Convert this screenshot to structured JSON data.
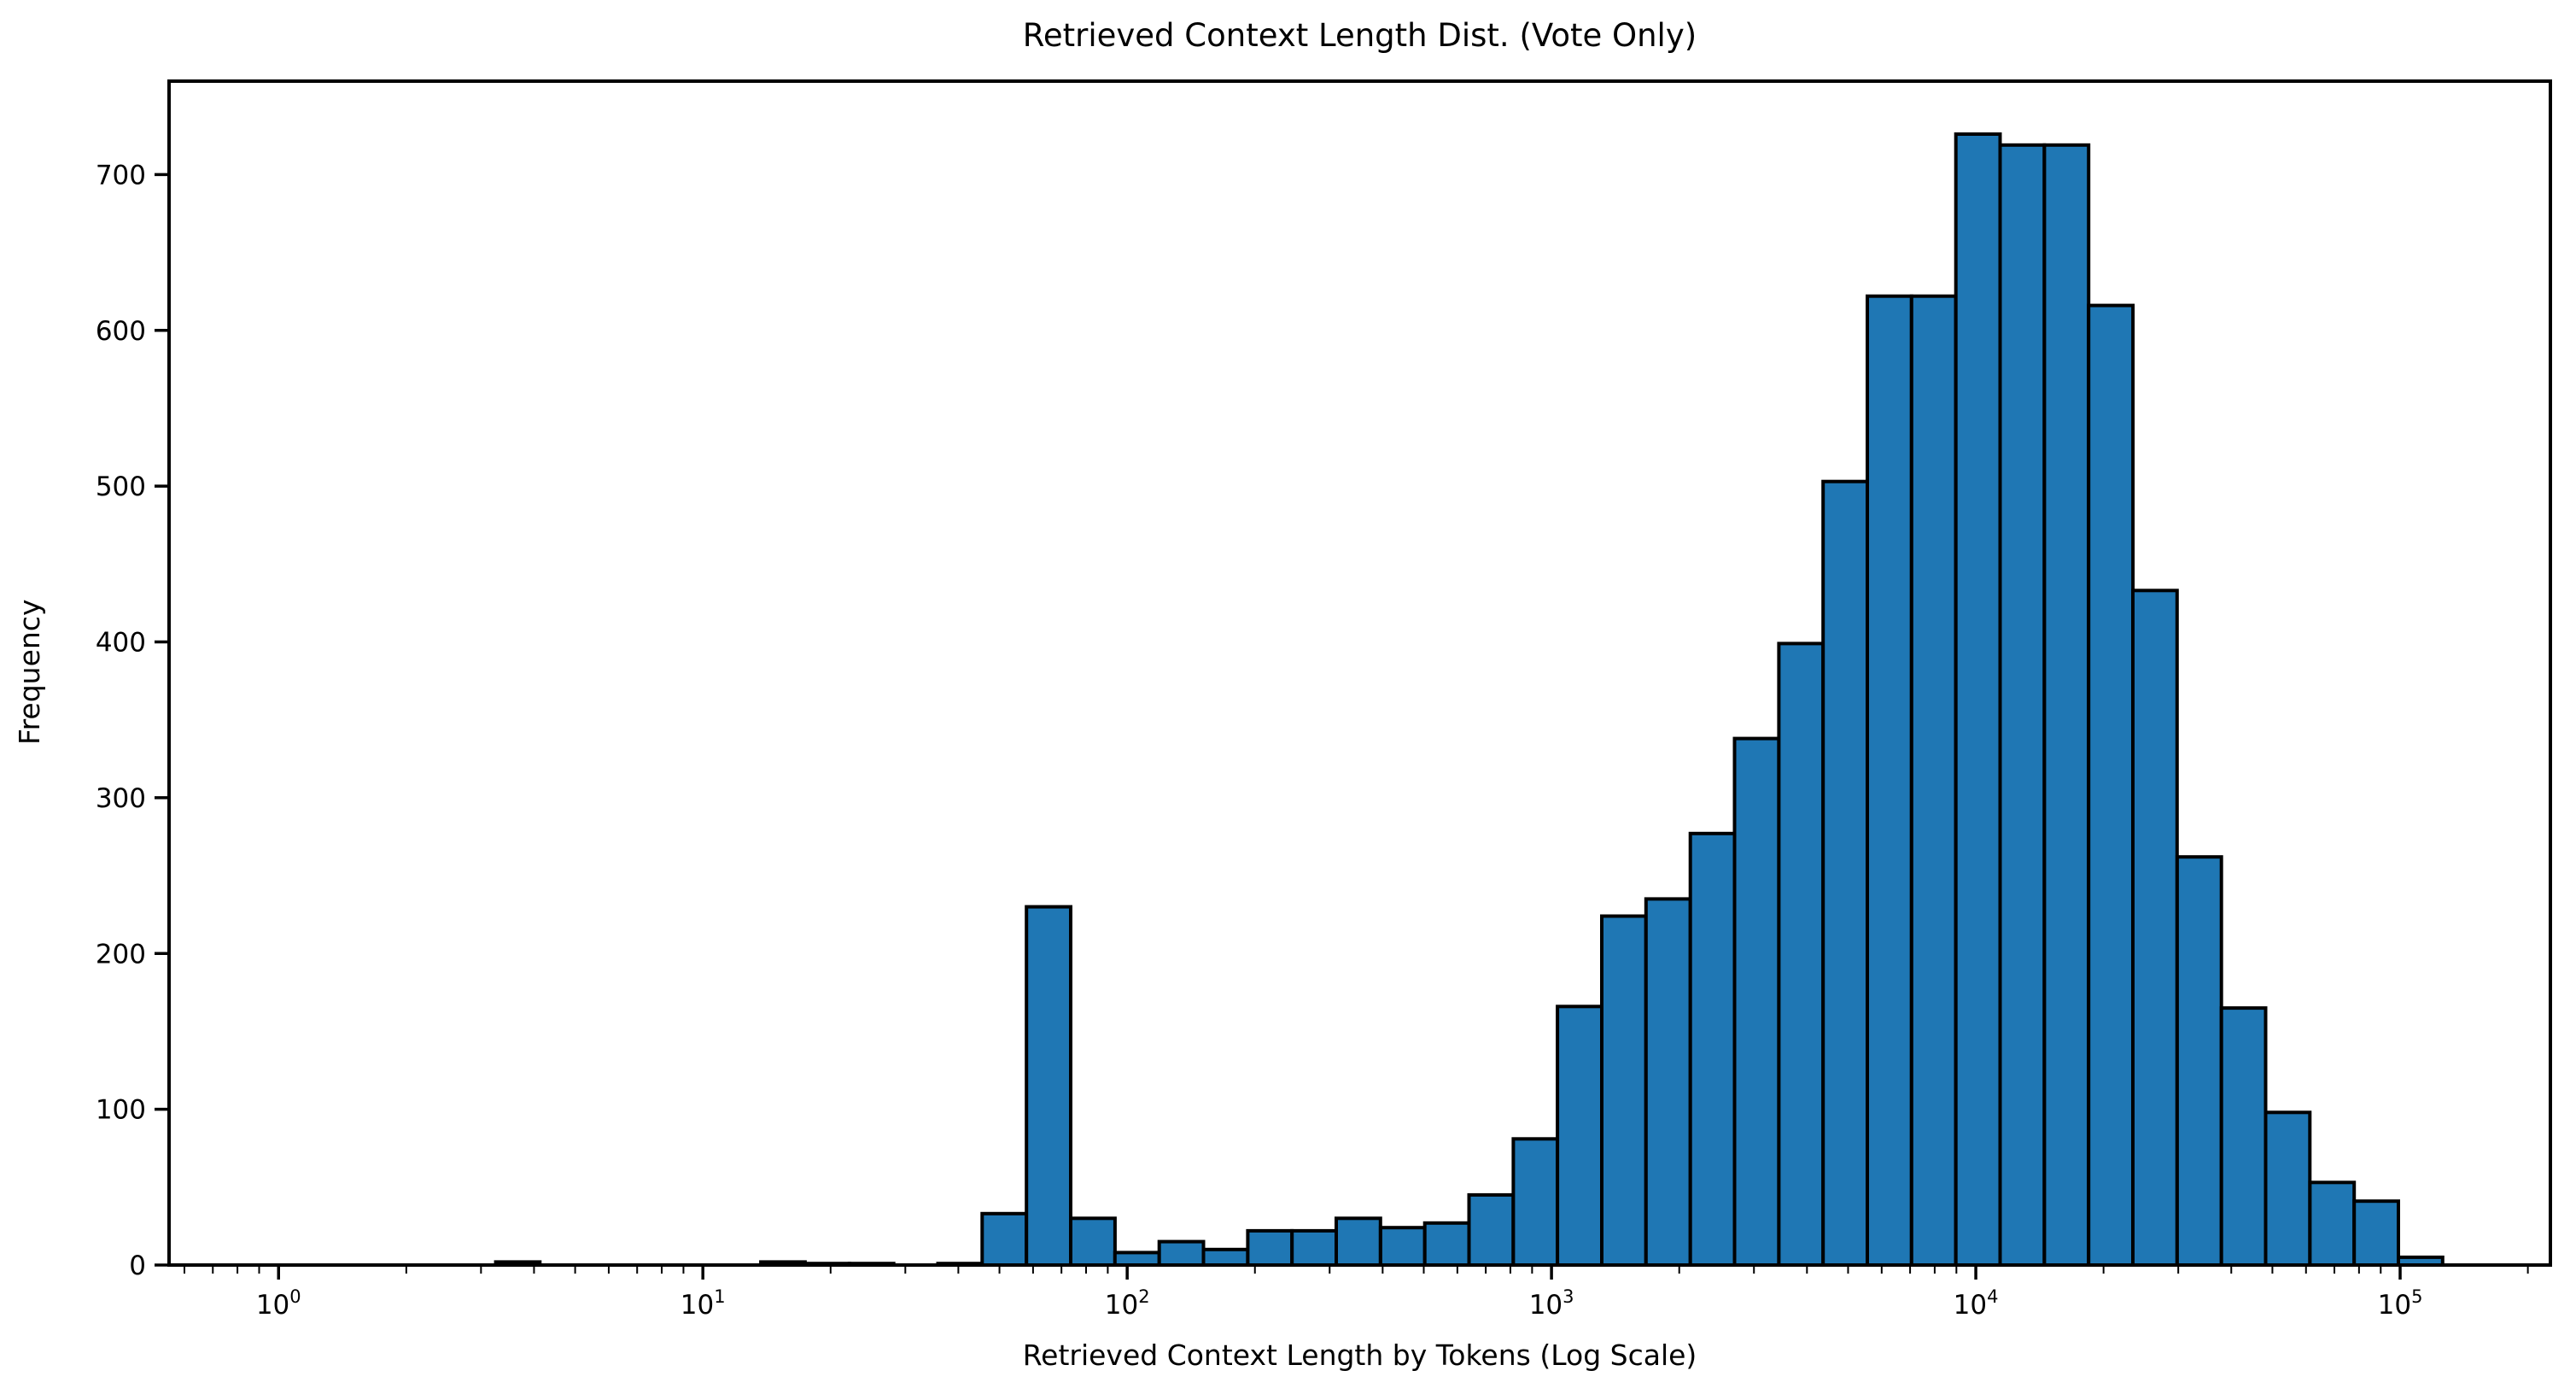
{
  "figure": {
    "title": "Retrieved Context Length Dist. (Vote Only)",
    "xlabel": "Retrieved Context Length by Tokens (Log Scale)",
    "ylabel": "Frequency",
    "background_color": "#ffffff",
    "text_color": "#000000"
  },
  "chart_data": {
    "type": "histogram",
    "title": "Retrieved Context Length Dist. (Vote Only)",
    "xlabel": "Retrieved Context Length by Tokens (Log Scale)",
    "ylabel": "Frequency",
    "x_scale": "log",
    "grid": false,
    "legend": null,
    "bar_color": "#1f77b4",
    "bar_edge_color": "#000000",
    "axis_color": "#000000",
    "bin_edges": [
      3.25,
      4.13,
      5.24,
      6.67,
      8.48,
      10.78,
      13.7,
      17.42,
      22.16,
      28.17,
      35.81,
      45.53,
      57.89,
      73.59,
      93.58,
      119.0,
      151.3,
      192.4,
      244.6,
      311.0,
      395.4,
      502.7,
      639.2,
      812.7,
      1033,
      1314,
      1670,
      2124,
      2700,
      3434,
      4365,
      5550,
      7057,
      8973,
      11409,
      14506,
      18444,
      23453,
      29819,
      37915,
      48207,
      61291,
      77927,
      99081,
      125976
    ],
    "counts": [
      2,
      0,
      0,
      0,
      0,
      0,
      2,
      1,
      1,
      0,
      1,
      33,
      230,
      30,
      8,
      15,
      10,
      22,
      22,
      30,
      24,
      27,
      45,
      81,
      166,
      224,
      235,
      277,
      338,
      399,
      503,
      622,
      622,
      726,
      719,
      719,
      616,
      433,
      262,
      165,
      98,
      53,
      41,
      5
    ],
    "xlim": [
      0.552,
      226000
    ],
    "ylim": [
      0,
      760
    ],
    "yticks": [
      0,
      100,
      200,
      300,
      400,
      500,
      600,
      700
    ],
    "xtick_base": "10",
    "xtick_exponents": [
      0,
      1,
      2,
      3,
      4,
      5
    ],
    "x_minor_ticks": "2-9 per decade",
    "legend_position": "none"
  }
}
